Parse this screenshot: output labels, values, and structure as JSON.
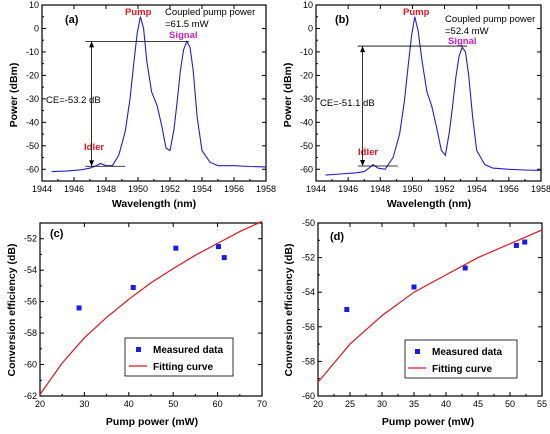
{
  "colors": {
    "spectrum": "#2020cc",
    "pump_label": "#e8141e",
    "signal_label": "#cc22cc",
    "idler_label": "#e8141e",
    "measured": "#1a1aee",
    "fit": "#e3141e"
  },
  "chart_data": [
    {
      "id": "a",
      "type": "line",
      "panel_label": "(a)",
      "xlabel": "Wavelength (nm)",
      "ylabel": "Power (dBm)",
      "xlim": [
        1944,
        1958
      ],
      "ylim": [
        -65,
        10
      ],
      "xticks": [
        1944,
        1946,
        1948,
        1950,
        1952,
        1954,
        1956,
        1958
      ],
      "yticks": [
        -60,
        -50,
        -40,
        -30,
        -20,
        -10,
        0,
        10
      ],
      "grid": false,
      "annotations": {
        "pump": "Pump",
        "signal": "Signal",
        "idler": "Idler",
        "power_line1": "Coupled pump power",
        "power_line2": "=61.5 mW",
        "ce": "CE=-53.2 dB"
      },
      "guide_levels": {
        "top": -5.5,
        "bottom": -58.7,
        "x_start": 1946.7,
        "x_end": 1953.2,
        "arrow_x": 1947.1
      },
      "series": [
        {
          "x": [
            1944.6,
            1945.5,
            1946.5,
            1947.0,
            1947.4,
            1947.65,
            1948.0,
            1948.4,
            1948.8,
            1949.2,
            1949.5,
            1949.75,
            1949.95,
            1950.15,
            1950.35,
            1950.55,
            1950.85,
            1951.2,
            1951.5,
            1951.75,
            1952.0,
            1952.25,
            1952.45,
            1952.65,
            1952.85,
            1953.05,
            1953.25,
            1953.45,
            1953.7,
            1954.0,
            1954.5,
            1955.0,
            1956.0,
            1957.0,
            1958.0
          ],
          "y": [
            -61,
            -60.8,
            -60.2,
            -59.5,
            -58.5,
            -57.5,
            -58.5,
            -58.5,
            -54,
            -44,
            -30,
            -14,
            -2,
            5,
            0,
            -14,
            -27,
            -33,
            -42,
            -51,
            -52,
            -43,
            -31,
            -18,
            -9,
            -5.5,
            -8,
            -18,
            -38,
            -52,
            -57,
            -58.5,
            -58.5,
            -58.8,
            -59
          ]
        }
      ]
    },
    {
      "id": "b",
      "type": "line",
      "panel_label": "(b)",
      "xlabel": "Wavelength (nm)",
      "ylabel": "Power (dBm)",
      "xlim": [
        1944,
        1958
      ],
      "ylim": [
        -65,
        10
      ],
      "xticks": [
        1944,
        1946,
        1948,
        1950,
        1952,
        1954,
        1956,
        1958
      ],
      "yticks": [
        -60,
        -50,
        -40,
        -30,
        -20,
        -10,
        0,
        10
      ],
      "grid": false,
      "annotations": {
        "pump": "Pump",
        "signal": "Signal",
        "idler": "Idler",
        "power_line1": "Coupled pump power",
        "power_line2": "=52.4 mW",
        "ce": "CE=-51.1 dB"
      },
      "guide_levels": {
        "top": -7.5,
        "bottom": -58.6,
        "x_start": 1946.6,
        "x_end": 1953.4,
        "arrow_x": 1946.9
      },
      "series": [
        {
          "x": [
            1944.6,
            1945.5,
            1946.5,
            1947.0,
            1947.3,
            1947.55,
            1947.85,
            1948.3,
            1948.8,
            1949.2,
            1949.5,
            1949.75,
            1949.95,
            1950.15,
            1950.35,
            1950.6,
            1950.9,
            1951.2,
            1951.5,
            1951.8,
            1952.05,
            1952.3,
            1952.5,
            1952.7,
            1952.9,
            1953.1,
            1953.3,
            1953.5,
            1953.75,
            1954.0,
            1954.5,
            1955.0,
            1956.0,
            1957.0,
            1958.0
          ],
          "y": [
            -62.5,
            -62,
            -61.5,
            -61,
            -59.5,
            -58,
            -59.5,
            -60,
            -55,
            -45,
            -31,
            -15,
            -3,
            5,
            -1,
            -14,
            -27,
            -33,
            -42,
            -52,
            -54,
            -44,
            -33,
            -21,
            -12,
            -8,
            -10,
            -20,
            -38,
            -52,
            -58,
            -59.5,
            -60,
            -60.3,
            -60.5
          ]
        }
      ]
    },
    {
      "id": "c",
      "type": "scatter",
      "panel_label": "(c)",
      "xlabel": "Pump power (mW)",
      "ylabel": "Conversion efficiency (dB)",
      "xlim": [
        20,
        70
      ],
      "ylim": [
        -62,
        -51
      ],
      "xticks": [
        20,
        30,
        40,
        50,
        60,
        70
      ],
      "yticks": [
        -62,
        -60,
        -58,
        -56,
        -54,
        -52
      ],
      "grid": false,
      "legend_position": "bottom-center",
      "series": [
        {
          "name": "Measured data",
          "kind": "points",
          "x": [
            28.8,
            41.0,
            50.6,
            60.2,
            61.5
          ],
          "y": [
            -56.4,
            -55.1,
            -52.6,
            -52.5,
            -53.2
          ]
        },
        {
          "name": "Fitting curve",
          "kind": "line",
          "x": [
            20,
            25,
            30,
            35,
            40,
            45,
            50,
            55,
            60,
            65,
            70
          ],
          "y": [
            -61.9,
            -59.9,
            -58.3,
            -57.0,
            -55.85,
            -54.8,
            -53.9,
            -53.05,
            -52.3,
            -51.55,
            -50.9
          ]
        }
      ]
    },
    {
      "id": "d",
      "type": "scatter",
      "panel_label": "(d)",
      "xlabel": "Pump power (mW)",
      "ylabel": "Conversion efficiency (dB)",
      "xlim": [
        20,
        55
      ],
      "ylim": [
        -60,
        -50
      ],
      "xticks": [
        20,
        25,
        30,
        35,
        40,
        45,
        50,
        55
      ],
      "yticks": [
        -60,
        -58,
        -56,
        -54,
        -52,
        -50
      ],
      "grid": false,
      "legend_position": "bottom-right",
      "series": [
        {
          "name": "Measured data",
          "kind": "points",
          "x": [
            24.5,
            35.0,
            43.0,
            51.0,
            52.3
          ],
          "y": [
            -55.0,
            -53.7,
            -52.6,
            -51.3,
            -51.1
          ]
        },
        {
          "name": "Fitting curve",
          "kind": "line",
          "x": [
            20,
            25,
            30,
            35,
            40,
            45,
            50,
            55
          ],
          "y": [
            -59.2,
            -57.0,
            -55.35,
            -54.0,
            -53.0,
            -52.0,
            -51.2,
            -50.4
          ]
        }
      ]
    }
  ]
}
